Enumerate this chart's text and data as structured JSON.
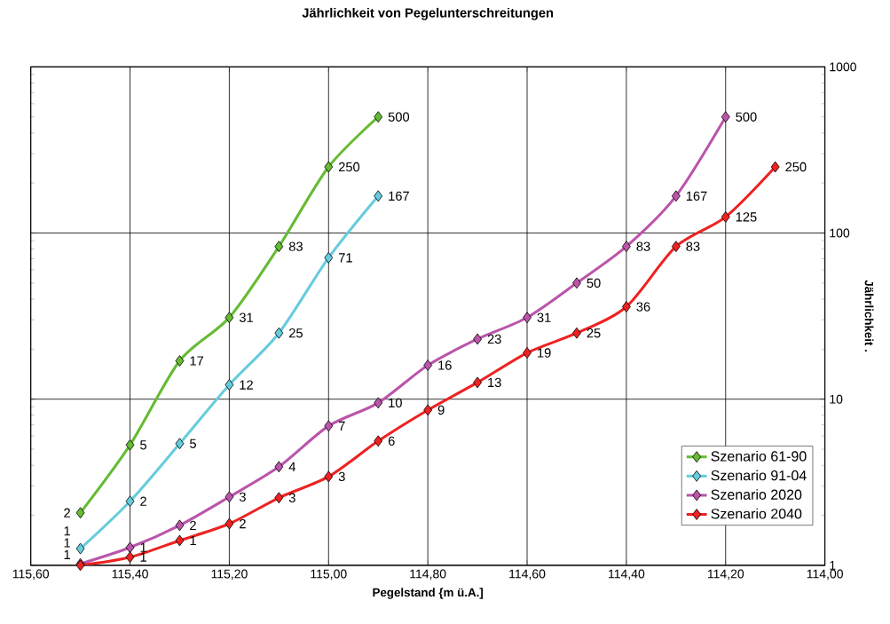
{
  "chart_data": {
    "type": "line",
    "title": "Jährlichkeit von Pegelunterschreitungen",
    "xlabel": "Pegelstand {m ü.A.]",
    "ylabel": "Jährlichkeit .",
    "xlim": [
      115.6,
      114.0
    ],
    "xticks": [
      {
        "value": 115.6,
        "label": "115,60"
      },
      {
        "value": 115.4,
        "label": "115,40"
      },
      {
        "value": 115.2,
        "label": "115,20"
      },
      {
        "value": 115.0,
        "label": "115,00"
      },
      {
        "value": 114.8,
        "label": "114,80"
      },
      {
        "value": 114.6,
        "label": "114,60"
      },
      {
        "value": 114.4,
        "label": "114,40"
      },
      {
        "value": 114.2,
        "label": "114,20"
      },
      {
        "value": 114.0,
        "label": "114,00"
      }
    ],
    "ylim": [
      1,
      1000
    ],
    "yticks": [
      1,
      10,
      100,
      1000
    ],
    "log": true,
    "grid": true,
    "legend": "bottom right",
    "marker": "diamond",
    "line_style": "solid",
    "series": [
      {
        "name": "Szenario 61-90",
        "color": "#66bb33",
        "x": [
          115.5,
          115.4,
          115.3,
          115.2,
          115.1,
          115.0,
          114.9
        ],
        "values": [
          2.07,
          5.3,
          17,
          31,
          83,
          250,
          500
        ],
        "value_labels": [
          "2",
          "5",
          "17",
          "31",
          "83",
          "250",
          "500"
        ]
      },
      {
        "name": "Szenario 91-04",
        "color": "#66ccdd",
        "x": [
          115.5,
          115.4,
          115.3,
          115.2,
          115.1,
          115.0,
          114.9
        ],
        "values": [
          1.26,
          2.43,
          5.4,
          12.2,
          25,
          71,
          167
        ],
        "value_labels": [
          "1",
          "2",
          "5",
          "12",
          "25",
          "71",
          "167"
        ]
      },
      {
        "name": "Szenario 2020",
        "color": "#bb55aa",
        "x": [
          115.5,
          115.4,
          115.3,
          115.2,
          115.1,
          115.0,
          114.9,
          114.8,
          114.7,
          114.6,
          114.5,
          114.4,
          114.3,
          114.2
        ],
        "values": [
          1.02,
          1.28,
          1.74,
          2.58,
          3.92,
          6.9,
          9.5,
          16,
          23,
          31,
          50,
          83,
          167,
          500
        ],
        "value_labels": [
          "1",
          "1",
          "2",
          "3",
          "4",
          "7",
          "10",
          "16",
          "23",
          "31",
          "50",
          "83",
          "167",
          "500"
        ]
      },
      {
        "name": "Szenario 2040",
        "color": "#ee2222",
        "x": [
          115.5,
          115.4,
          115.3,
          115.2,
          115.1,
          115.0,
          114.9,
          114.8,
          114.7,
          114.6,
          114.5,
          114.4,
          114.3,
          114.2,
          114.1
        ],
        "values": [
          1.0,
          1.12,
          1.41,
          1.78,
          2.55,
          3.42,
          5.6,
          8.6,
          12.6,
          19,
          25,
          36,
          83,
          125,
          250
        ],
        "value_labels": [
          "1",
          "1",
          "1",
          "2",
          "3",
          "3",
          "6",
          "9",
          "13",
          "19",
          "25",
          "36",
          "83",
          "125",
          "250"
        ]
      }
    ]
  }
}
